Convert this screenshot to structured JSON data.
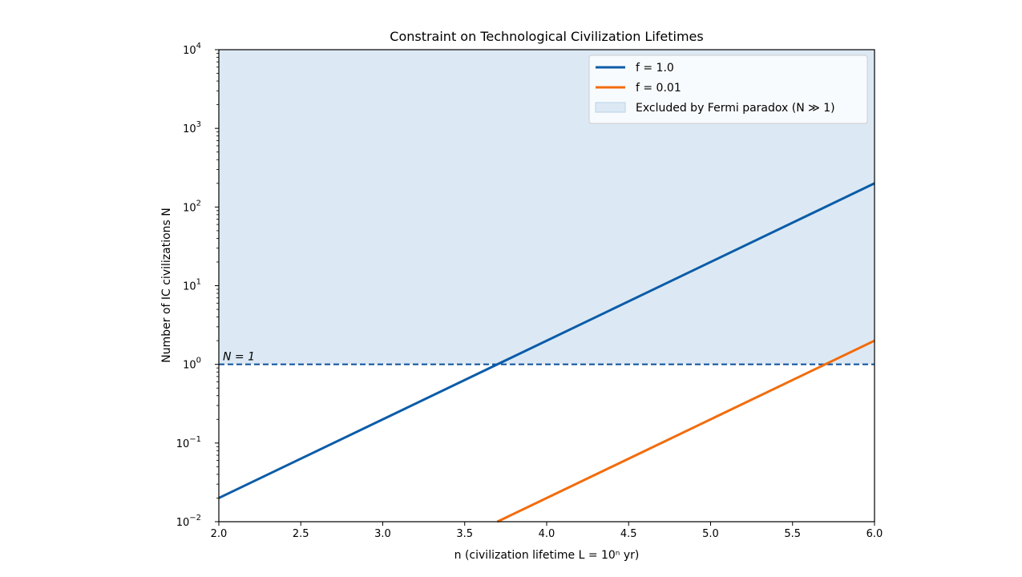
{
  "chart_data": {
    "type": "line",
    "title": "Constraint on Technological Civilization Lifetimes",
    "xlabel": "n  (civilization lifetime L = 10ⁿ yr)",
    "ylabel": "Number of IC civilizations N",
    "xlim": [
      2.0,
      6.0
    ],
    "ylim": [
      0.01,
      10000
    ],
    "yscale": "log",
    "grid": false,
    "legend_placement": "top-right",
    "xticks": [
      "2.0",
      "2.5",
      "3.0",
      "3.5",
      "4.0",
      "4.5",
      "5.0",
      "5.5",
      "6.0"
    ],
    "yticks": [
      {
        "value": 0.01,
        "base": "10",
        "exp": "−2"
      },
      {
        "value": 0.1,
        "base": "10",
        "exp": "−1"
      },
      {
        "value": 1,
        "base": "10",
        "exp": "0"
      },
      {
        "value": 10,
        "base": "10",
        "exp": "1"
      },
      {
        "value": 100,
        "base": "10",
        "exp": "2"
      },
      {
        "value": 1000,
        "base": "10",
        "exp": "3"
      },
      {
        "value": 10000,
        "base": "10",
        "exp": "4"
      }
    ],
    "series": [
      {
        "name": "f = 1.0",
        "color": "#0b5ca8",
        "x": [
          2.0,
          6.0
        ],
        "y": [
          0.02,
          200
        ]
      },
      {
        "name": "f = 0.01",
        "color": "#f26c0d",
        "x": [
          2.0,
          6.0
        ],
        "y": [
          0.0002,
          2
        ]
      }
    ],
    "shaded_region": {
      "name": "Excluded by Fermi paradox (N ≫ 1)",
      "y_from": 1,
      "y_to": 10000,
      "color": "#dce9f4"
    },
    "reference_line": {
      "y": 1,
      "style": "dashed",
      "color": "#0b4f9c",
      "label": "N = 1"
    }
  }
}
